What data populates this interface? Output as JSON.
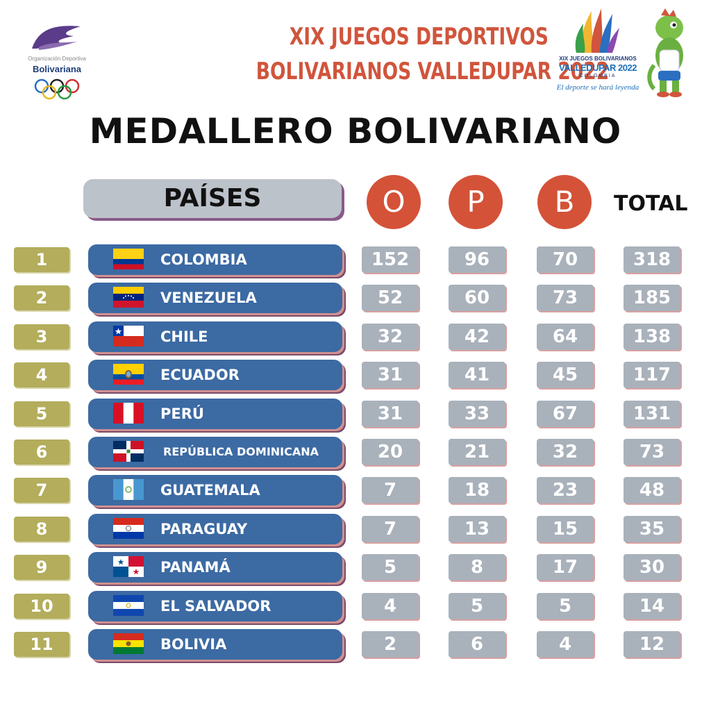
{
  "header": {
    "org_top": "Organización Deportiva",
    "org_name": "Bolivariana",
    "event_line1": "XIX JUEGOS DEPORTIVOS",
    "event_line2": "BOLIVARIANOS VALLEDUPAR 2022",
    "event_logo": {
      "line1": "XIX JUEGOS BOLIVARIANOS",
      "line2": "VALLEDUPAR 2022",
      "line3": "COLOMBIA",
      "slogan": "El deporte se hará leyenda"
    },
    "main_title": "MEDALLERO BOLIVARIANO"
  },
  "columns": {
    "countries": "PAÍSES",
    "gold": "O",
    "silver": "P",
    "bronze": "B",
    "total": "TOTAL"
  },
  "colors": {
    "accent_red": "#d45238",
    "row_blue": "#3c6aa3",
    "rank_olive": "#b3ad5c",
    "cell_gray": "#a9b1bb"
  },
  "rows": [
    {
      "rank": "1",
      "country": "COLOMBIA",
      "flag": "colombia",
      "gold": "152",
      "silver": "96",
      "bronze": "70",
      "total": "318"
    },
    {
      "rank": "2",
      "country": "VENEZUELA",
      "flag": "venezuela",
      "gold": "52",
      "silver": "60",
      "bronze": "73",
      "total": "185"
    },
    {
      "rank": "3",
      "country": "CHILE",
      "flag": "chile",
      "gold": "32",
      "silver": "42",
      "bronze": "64",
      "total": "138"
    },
    {
      "rank": "4",
      "country": "ECUADOR",
      "flag": "ecuador",
      "gold": "31",
      "silver": "41",
      "bronze": "45",
      "total": "117"
    },
    {
      "rank": "5",
      "country": "PERÚ",
      "flag": "peru",
      "gold": "31",
      "silver": "33",
      "bronze": "67",
      "total": "131"
    },
    {
      "rank": "6",
      "country": "REPÚBLICA DOMINICANA",
      "flag": "dominicana",
      "gold": "20",
      "silver": "21",
      "bronze": "32",
      "total": "73"
    },
    {
      "rank": "7",
      "country": "GUATEMALA",
      "flag": "guatemala",
      "gold": "7",
      "silver": "18",
      "bronze": "23",
      "total": "48"
    },
    {
      "rank": "8",
      "country": "PARAGUAY",
      "flag": "paraguay",
      "gold": "7",
      "silver": "13",
      "bronze": "15",
      "total": "35"
    },
    {
      "rank": "9",
      "country": "PANAMÁ",
      "flag": "panama",
      "gold": "5",
      "silver": "8",
      "bronze": "17",
      "total": "30"
    },
    {
      "rank": "10",
      "country": "EL SALVADOR",
      "flag": "el-salvador",
      "gold": "4",
      "silver": "5",
      "bronze": "5",
      "total": "14"
    },
    {
      "rank": "11",
      "country": "BOLIVIA",
      "flag": "bolivia",
      "gold": "2",
      "silver": "6",
      "bronze": "4",
      "total": "12"
    }
  ]
}
